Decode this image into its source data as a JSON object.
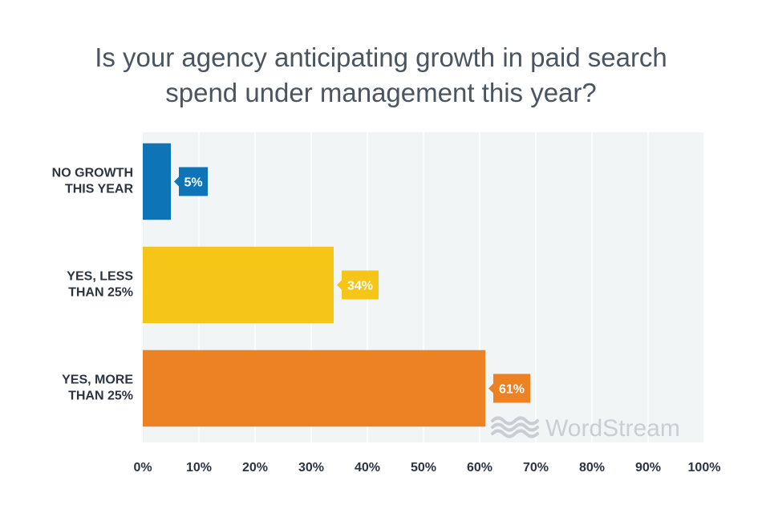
{
  "chart_data": {
    "type": "bar",
    "orientation": "horizontal",
    "title_lines": [
      "Is your agency anticipating growth in paid search",
      "spend under management this year?"
    ],
    "categories": [
      [
        "NO GROWTH",
        "THIS YEAR"
      ],
      [
        "YES, LESS",
        "THAN 25%"
      ],
      [
        "YES, MORE",
        "THAN 25%"
      ]
    ],
    "values": [
      5,
      34,
      61
    ],
    "value_labels": [
      "5%",
      "34%",
      "61%"
    ],
    "colors": [
      "#0d74b8",
      "#f5c518",
      "#ec8223"
    ],
    "xlim": [
      0,
      100
    ],
    "xticks": [
      0,
      10,
      20,
      30,
      40,
      50,
      60,
      70,
      80,
      90,
      100
    ],
    "xtick_labels": [
      "0%",
      "10%",
      "20%",
      "30%",
      "40%",
      "50%",
      "60%",
      "70%",
      "80%",
      "90%",
      "100%"
    ],
    "grid": true,
    "legend": "none"
  },
  "watermark": "WordStream",
  "colors": {
    "plot_background": "#f2f5f6",
    "grid": "#ffffff",
    "title": "#4a5560",
    "axis_text": "#2c3440",
    "watermark": "#c8ced3"
  }
}
